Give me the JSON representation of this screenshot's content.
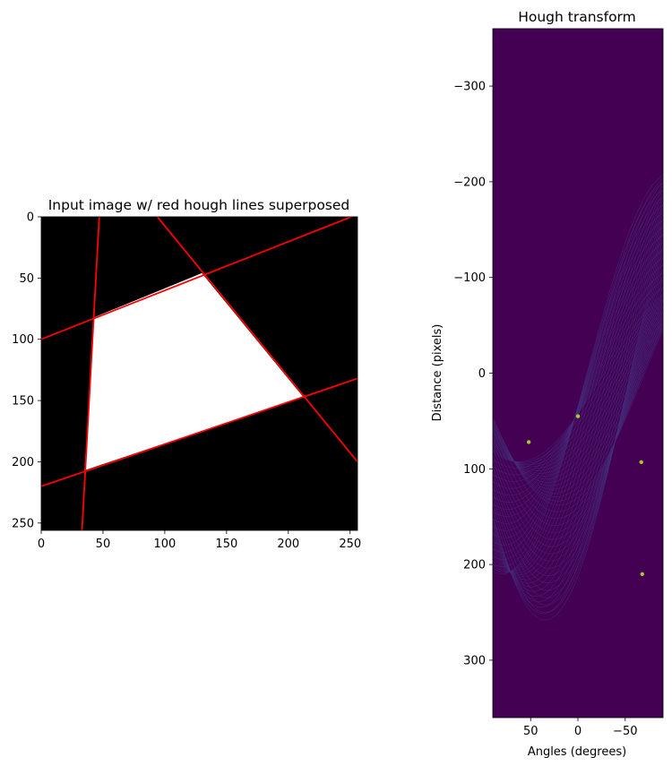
{
  "chart_data": [
    {
      "type": "heatmap",
      "title": "Input image w/ red hough lines superposed",
      "xlabel": "",
      "ylabel": "",
      "xlim": [
        0,
        256
      ],
      "ylim": [
        256,
        0
      ],
      "xticks": [
        0,
        50,
        100,
        150,
        200,
        250
      ],
      "yticks": [
        0,
        50,
        100,
        150,
        200,
        250
      ],
      "colors": {
        "background": "#000000",
        "shape": "#ffffff",
        "lines": "#ff0000"
      },
      "shape_vertices": [
        [
          43,
          82
        ],
        [
          130,
          46
        ],
        [
          212,
          147
        ],
        [
          35,
          207
        ]
      ],
      "hough_lines": [
        {
          "x1": 0,
          "y1": 100,
          "x2": 256,
          "y2": -2
        },
        {
          "x1": 0,
          "y1": 220,
          "x2": 256,
          "y2": 132
        },
        {
          "x1": 33,
          "y1": 256,
          "x2": 47,
          "y2": 0
        },
        {
          "x1": 94,
          "y1": 0,
          "x2": 256,
          "y2": 200
        }
      ]
    },
    {
      "type": "heatmap",
      "title": "Hough transform",
      "xlabel": "Angles (degrees)",
      "ylabel": "Distance (pixels)",
      "xlim": [
        90,
        -90
      ],
      "ylim": [
        360,
        -360
      ],
      "xticks": [
        50,
        0,
        -50
      ],
      "xtick_labels": [
        "50",
        "0",
        "−50"
      ],
      "yticks": [
        -300,
        -200,
        -100,
        0,
        100,
        200,
        300
      ],
      "ytick_labels": [
        "−300",
        "−200",
        "−100",
        "0",
        "100",
        "200",
        "300"
      ],
      "colors": {
        "background": "#440154",
        "curves": "#46327e",
        "bright": "#35b779",
        "peak": "#b5de2b"
      },
      "peaks": [
        {
          "angle": 52,
          "distance": 72
        },
        {
          "angle": 0,
          "distance": 45
        },
        {
          "angle": -67,
          "distance": 93
        },
        {
          "angle": -68,
          "distance": 210
        }
      ]
    }
  ]
}
